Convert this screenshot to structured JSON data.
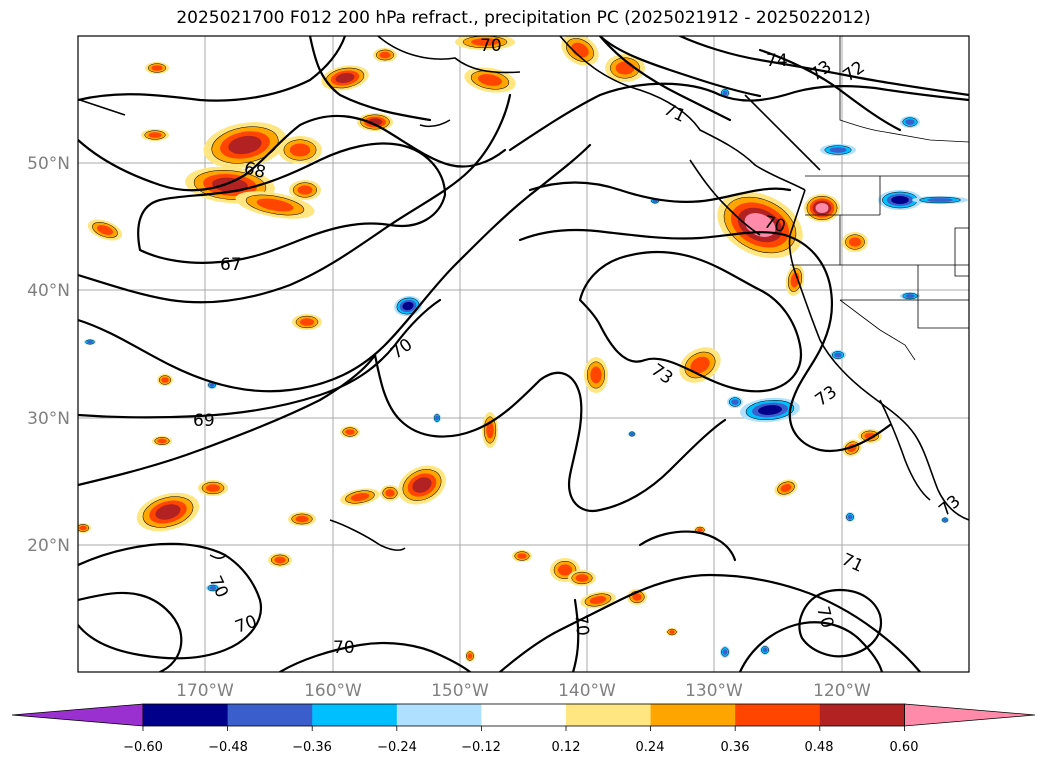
{
  "title": "2025021700 F012 200 hPa refract., precipitation PC (2025021912 - 2025022012)",
  "lat_labels": [
    "50°N",
    "40°N",
    "30°N",
    "20°N"
  ],
  "lon_labels": [
    "170°W",
    "160°W",
    "150°W",
    "140°W",
    "130°W",
    "120°W"
  ],
  "contour_labels": [
    "70",
    "74",
    "73",
    "72",
    "71",
    "68",
    "67",
    "70",
    "70",
    "73",
    "73",
    "69",
    "70",
    "73",
    "71",
    "70",
    "70",
    "70",
    "70"
  ],
  "colorbar": {
    "ticks": [
      "−0.60",
      "−0.48",
      "−0.36",
      "−0.24",
      "−0.12",
      "0.12",
      "0.24",
      "0.36",
      "0.48",
      "0.60"
    ],
    "colors": [
      "#9b30d0",
      "#00008b",
      "#3a5fcd",
      "#00bfff",
      "#b0e0ff",
      "#ffffff",
      "#ffe680",
      "#ffa500",
      "#ff4500",
      "#b22222",
      "#ff8aaa"
    ]
  },
  "palette": {
    "deep_red": "#b22222",
    "red": "#ff4500",
    "orange": "#ffa500",
    "yellow": "#ffe680",
    "pink": "#ff8aaa",
    "dark_blue": "#00008b",
    "blue": "#3a5fcd",
    "cyan": "#00bfff",
    "light_blue": "#b0e0ff"
  }
}
